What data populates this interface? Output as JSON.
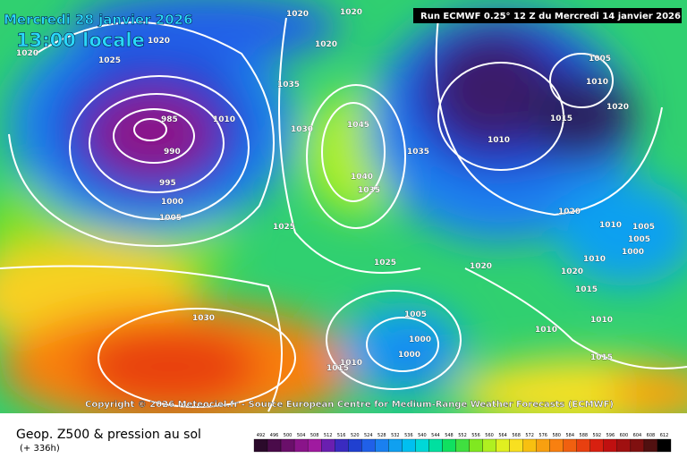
{
  "header": {
    "date": "Mercredi 28 janvier 2026",
    "time": "13:00 locale",
    "run": "Run ECMWF 0.25° 12 Z du Mercredi 14 janvier 2026"
  },
  "copyright": "Copyright © 2026 Meteociel.fr - Source European Centre for Medium-Range Weather Forecasts (ECMWF)",
  "footer": {
    "title": "Geop. Z500 & pression au sol",
    "lead": "(+ 336h)"
  },
  "isobar_labels": [
    1020,
    1025,
    1020,
    985,
    990,
    995,
    1000,
    1005,
    1010,
    1035,
    1030,
    1045,
    1040,
    1035,
    1035,
    1025,
    1025,
    1020,
    1030,
    1005,
    1000,
    1000,
    1015,
    1010,
    1010,
    1015,
    1005,
    1010,
    1020,
    1020,
    1010,
    1005,
    1005,
    1000,
    1010,
    1020,
    1015,
    1010,
    1010,
    1015,
    1020,
    1020,
    1020
  ],
  "colorbar": {
    "values": [
      492,
      496,
      500,
      504,
      508,
      512,
      516,
      520,
      524,
      528,
      532,
      536,
      540,
      544,
      548,
      552,
      556,
      560,
      564,
      568,
      572,
      576,
      580,
      584,
      588,
      592,
      596,
      600,
      604,
      608,
      612
    ],
    "colors": [
      "#2b0a2b",
      "#4a0b4a",
      "#6a0f6a",
      "#8a148a",
      "#a01aa0",
      "#6a1fb0",
      "#3a2bc0",
      "#2040d0",
      "#2060e8",
      "#1a80f0",
      "#10a0f0",
      "#00c0f0",
      "#00d8d8",
      "#00e0a0",
      "#10e060",
      "#40e040",
      "#80e820",
      "#b0f020",
      "#e0f020",
      "#f8e020",
      "#f8c010",
      "#f8a010",
      "#f88010",
      "#f06010",
      "#e84010",
      "#d82010",
      "#c01010",
      "#a01010",
      "#801010",
      "#501010",
      "#000000"
    ]
  }
}
